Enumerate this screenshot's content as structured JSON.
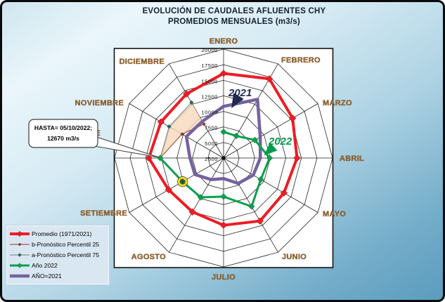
{
  "title": {
    "line1": "EVOLUCIÓN DE CAUDALES AFLUENTES CHY",
    "line2": "PROMEDIOS MENSUALES (m3/s)"
  },
  "annotations": {
    "callout": {
      "line1": "HASTA= 05/10/2022;",
      "line2": "12670 m3/s"
    },
    "label_2021": "2021",
    "label_2022": "2022",
    "label_2021_color": "#252c55",
    "label_2022_color": "#009c4a"
  },
  "legend": {
    "items": [
      {
        "label": "Promedio (1971/2021)",
        "color": "#ee1c24",
        "marker_color": "#ee1c24",
        "line_width": 4,
        "marker_size": 4
      },
      {
        "label": "b-Pronóstico Percentil 25",
        "color": "#a85444",
        "marker_color": "#8f3528",
        "line_width": 1.3,
        "marker_size": 2.2
      },
      {
        "label": "a-Pronóstico Percentil 75",
        "color": "#8f8f8f",
        "marker_color": "#1d6f63",
        "line_width": 1.3,
        "marker_size": 2.6
      },
      {
        "label": "Año 2022",
        "color": "#0ba04c",
        "marker_color": "#0ba04c",
        "line_width": 3,
        "marker_size": 3.5
      },
      {
        "label": "AÑO=2021",
        "color": "#74639f",
        "marker_color": "",
        "line_width": 4.5,
        "marker_size": 0
      }
    ]
  },
  "chart_data": {
    "type": "radar",
    "title": "EVOLUCIÓN DE CAUDALES AFLUENTES CHY PROMEDIOS MENSUALES (m3/s)",
    "unit": "m3/s",
    "categories": [
      "ENERO",
      "FEBRERO",
      "MARZO",
      "ABRIL",
      "MAYO",
      "JUNIO",
      "JULIO",
      "AGOSTO",
      "SETIEMBRE",
      "OCTUBRE",
      "NOVIEMBRE",
      "DICIEMBRE"
    ],
    "axis": {
      "min": 2500,
      "max": 20000,
      "step": 2500,
      "ticks": [
        2500,
        5000,
        7500,
        10000,
        12500,
        15000,
        17500,
        20000
      ]
    },
    "series": [
      {
        "name": "Promedio (1971/2021)",
        "color": "#ee1c24",
        "width": 4,
        "closed": true,
        "marker": "diamond",
        "marker_size": 5,
        "values": [
          16100,
          17200,
          15300,
          14300,
          13700,
          14200,
          13300,
          12500,
          12700,
          14500,
          14100,
          14400
        ]
      },
      {
        "name": "b-Pronóstico Percentil 25",
        "color": "#a85444",
        "width": 1.2,
        "closed": false,
        "marker": "diamond",
        "marker_size": 2.4,
        "marker_color": "#8f3528",
        "values": [
          null,
          null,
          null,
          null,
          null,
          null,
          null,
          null,
          null,
          12670,
          10200,
          8800
        ]
      },
      {
        "name": "a-Pronóstico Percentil 75",
        "color": "#8f8f8f",
        "width": 1.2,
        "closed": false,
        "marker": "diamond",
        "marker_size": 3,
        "marker_color": "#1d6f63",
        "values": [
          null,
          null,
          null,
          null,
          null,
          null,
          null,
          null,
          null,
          12670,
          12600,
          12800
        ]
      },
      {
        "name": "AÑO=2021",
        "color": "#74639f",
        "width": 4.5,
        "closed": true,
        "marker": "none",
        "marker_size": 0,
        "values": [
          10800,
          13400,
          9300,
          8400,
          8000,
          7200,
          5800,
          6500,
          7800,
          7900,
          9400,
          9300
        ]
      },
      {
        "name": "Año 2022",
        "color": "#0ba04c",
        "width": 3,
        "closed": false,
        "marker": "diamond",
        "marker_size": 4.5,
        "values": [
          6700,
          6600,
          8300,
          9900,
          9400,
          11500,
          8700,
          9800,
          10100,
          12670,
          null,
          null
        ]
      }
    ],
    "band": {
      "upper": "a-Pronóstico Percentil 75",
      "lower": "b-Pronóstico Percentil 25",
      "fill": "#f6d9ba",
      "opacity": 0.8
    },
    "highlight_point": {
      "series": "Año 2022",
      "category": "SETIEMBRE",
      "value": 10100
    },
    "layout": {
      "legend_position": "bottom-left",
      "grid": true,
      "axis_start_at_center": 2500
    }
  }
}
